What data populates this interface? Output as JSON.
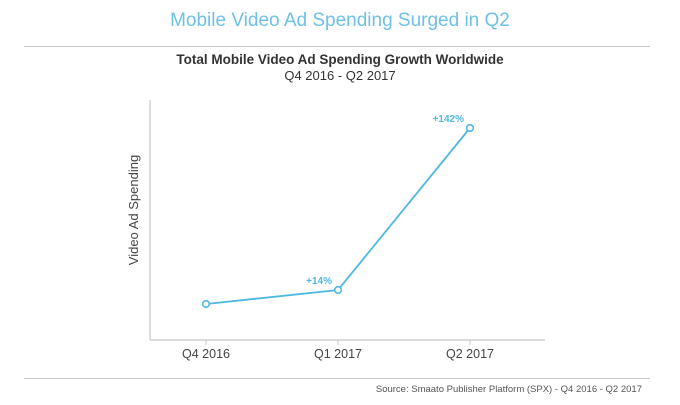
{
  "header": {
    "title": "Mobile Video Ad Spending Surged in Q2"
  },
  "chart_data": {
    "type": "line",
    "title": "Total Mobile Video Ad Spending Growth Worldwide",
    "subtitle": "Q4 2016 - Q2 2017",
    "xlabel": "",
    "ylabel": "Video Ad Spending",
    "categories": [
      "Q4 2016",
      "Q1 2017",
      "Q2 2017"
    ],
    "values": [
      100,
      114,
      276
    ],
    "value_note": "relative index (Q4 2016 = 100)",
    "data_labels": [
      "",
      "+14%",
      "+142%"
    ],
    "ylim": [
      0,
      300
    ],
    "grid": false,
    "color": "#4fb8e0"
  },
  "footer": {
    "source": "Source: Smaato Publisher Platform (SPX) - Q4 2016 - Q2 2017"
  }
}
